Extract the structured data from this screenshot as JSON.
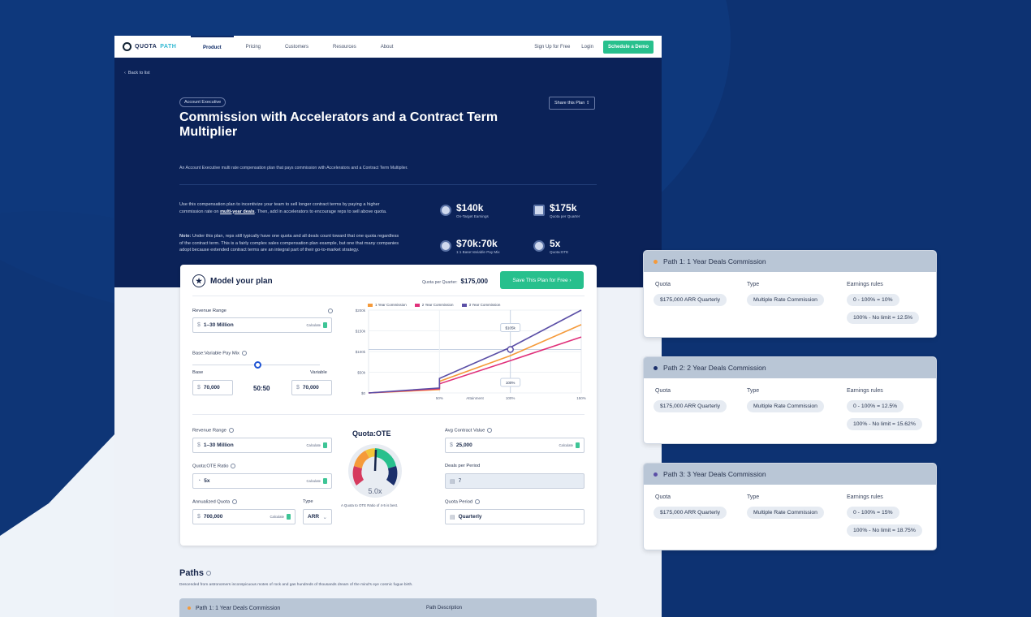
{
  "brand": {
    "name_a": "QUOTA",
    "name_b": "PATH"
  },
  "nav": {
    "items": [
      "Product",
      "Pricing",
      "Customers",
      "Resources",
      "About"
    ],
    "signup": "Sign Up for Free",
    "login": "Login",
    "demo": "Schedule a Demo"
  },
  "hero": {
    "back": "Back to list",
    "tag": "Account Executive",
    "share": "Share this Plan",
    "title": "Commission with Accelerators and a Contract Term Multiplier",
    "subtitle": "An Account Executive multi rate compensation plan that pays commission with Accelerators and a Contract Term Multiplier.",
    "desc1_a": "Use this compensation plan to incentivize your team to sell longer contract terms by paying a higher commission rate on ",
    "desc1_link": "multi-year deals",
    "desc1_b": ". Then, add in accelerators to encourage reps to sell above quota.",
    "desc2_label": "Note:",
    "desc2": " Under this plan, reps still typically have one quota and all deals count toward that one quota regardless of the contract term. This is a fairly complex sales compensation plan example, but one that many companies adopt because extended contract terms are an integral part of their go-to-market strategy.",
    "stats": [
      {
        "value": "$140k",
        "label": "On-Target Earnings"
      },
      {
        "value": "$175k",
        "label": "Quota per Quarter"
      },
      {
        "value": "$70k:70k",
        "label": "1:1 Base:Variable Pay Mix"
      },
      {
        "value": "5x",
        "label": "Quota:OTE"
      }
    ]
  },
  "model": {
    "title": "Model your plan",
    "quota_label": "Quota per Quarter:",
    "quota_value": "$175,000",
    "save": "Save This Plan for Free",
    "revenue_range_label": "Revenue Range",
    "revenue_range": "1–30 Million",
    "calculate": "Calculate",
    "pay_mix_label": "Base:Variable Pay Mix",
    "base_label": "Base",
    "variable_label": "Variable",
    "base_value": "70,000",
    "variable_value": "70,000",
    "ratio": "50:50",
    "currency": "$",
    "revenue_range2_label": "Revenue Range",
    "revenue_range2": "1–30 Million",
    "quota_ote_ratio_label": "Quota:OTE Ratio",
    "quota_ote_ratio": "5x",
    "annualized_label": "Annualized Quota",
    "annualized": "700,000",
    "type_label": "Type",
    "type_value": "ARR",
    "gauge_title": "Quota:OTE",
    "gauge_value": "5.0x",
    "gauge_note": "A Quota to OTE Ratio of 4-5 is best.",
    "acv_label": "Avg Contract Value",
    "acv": "25,000",
    "deals_label": "Deals per Period",
    "deals": "7",
    "period_label": "Quota Period",
    "period": "Quarterly"
  },
  "chart_data": {
    "type": "line",
    "series": [
      {
        "name": "1 Year Commission",
        "color": "#f59a3a",
        "x": [
          0,
          50,
          50,
          100,
          150
        ],
        "y": [
          0,
          8,
          28,
          90,
          165
        ]
      },
      {
        "name": "2 Year Commission",
        "color": "#e0307a",
        "x": [
          0,
          50,
          50,
          100,
          150
        ],
        "y": [
          0,
          10,
          22,
          78,
          135
        ]
      },
      {
        "name": "3 Year Commission",
        "color": "#5b4fa6",
        "x": [
          0,
          50,
          50,
          100,
          150
        ],
        "y": [
          0,
          12,
          35,
          110,
          200
        ]
      }
    ],
    "xticks": [
      "50%",
      "Attainment",
      "100%",
      "150%"
    ],
    "yticks": [
      "$200k",
      "$150k",
      "$100k",
      "$50k",
      "$0"
    ],
    "ylim": [
      0,
      200
    ],
    "xlim": [
      0,
      150
    ],
    "annotation_y": "$105k",
    "annotation_x": "100%"
  },
  "paths_section": {
    "title": "Paths",
    "subtitle": "Descended from astronomers inconspicuous motes of rock and gas hundreds of thousands dream of the mind's eye cosmic fugue birth.",
    "bar_label": "Path 1:  1 Year Deals Commission",
    "bar_desc": "Path Description"
  },
  "side_cards": [
    {
      "title": "Path 1:  1 Year Deals Commission",
      "dot": "#f59a3a",
      "quota_h": "Quota",
      "type_h": "Type",
      "rules_h": "Earnings rules",
      "quota": "$175,000 ARR Quarterly",
      "type": "Multiple Rate Commission",
      "rule1": "0 - 100% = 10%",
      "rule2": "100% - No limit = 12.5%"
    },
    {
      "title": "Path 2:  2 Year Deals Commission",
      "dot": "#1b2f6b",
      "quota_h": "Quota",
      "type_h": "Type",
      "rules_h": "Earnings rules",
      "quota": "$175,000 ARR Quarterly",
      "type": "Multiple Rate Commission",
      "rule1": "0 - 100% = 12.5%",
      "rule2": "100% - No limit = 15.62%"
    },
    {
      "title": "Path 3:  3 Year Deals Commission",
      "dot": "#5b4fa6",
      "quota_h": "Quota",
      "type_h": "Type",
      "rules_h": "Earnings rules",
      "quota": "$175,000 ARR Quarterly",
      "type": "Multiple Rate Commission",
      "rule1": "0 - 100% = 15%",
      "rule2": "100% - No limit = 18.75%"
    }
  ]
}
